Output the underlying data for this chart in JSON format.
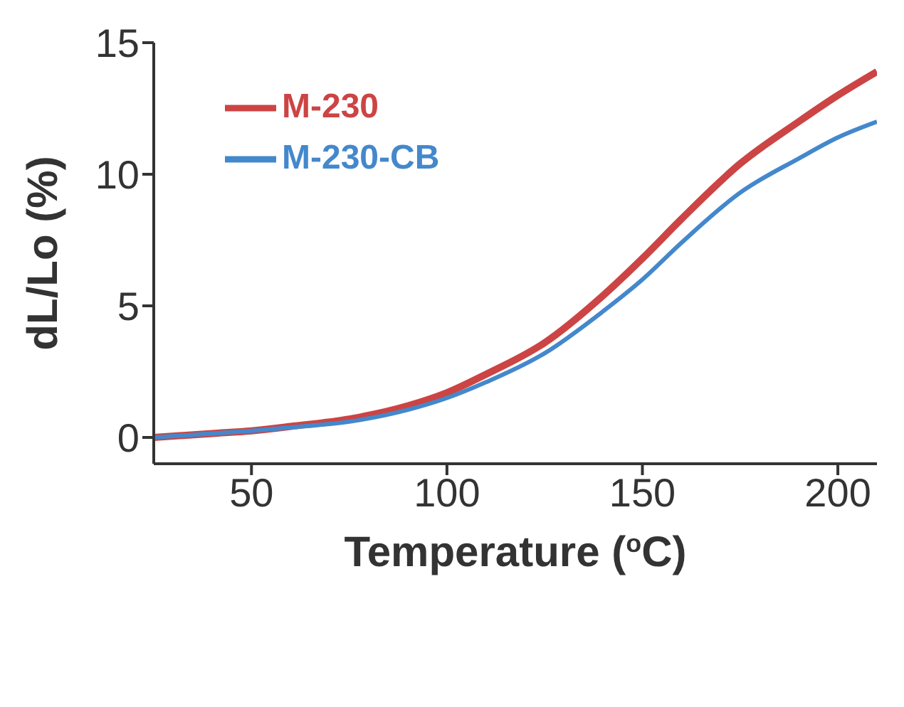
{
  "chart_data": {
    "type": "line",
    "xlabel": "Temperature ($^{o}$C)",
    "ylabel": "dL/Lo (%)",
    "x": [
      25,
      40,
      50,
      60,
      75,
      90,
      100,
      110,
      125,
      140,
      150,
      160,
      175,
      190,
      200,
      210
    ],
    "series": [
      {
        "name": "M-230",
        "color": "#cc4444",
        "values": [
          0,
          0.15,
          0.25,
          0.42,
          0.7,
          1.2,
          1.7,
          2.4,
          3.6,
          5.4,
          6.8,
          8.3,
          10.4,
          12.0,
          13.0,
          13.9
        ]
      },
      {
        "name": "M-230-CB",
        "color": "#4488cc",
        "values": [
          0,
          0.15,
          0.25,
          0.38,
          0.6,
          1.05,
          1.5,
          2.1,
          3.2,
          4.8,
          6.0,
          7.4,
          9.3,
          10.6,
          11.4,
          12.0
        ]
      }
    ],
    "xlim": [
      25,
      210
    ],
    "xticks": [
      50,
      100,
      150,
      200
    ],
    "ylim": [
      -1,
      15
    ],
    "yticks": [
      0,
      5,
      10,
      15
    ],
    "grid": false,
    "legend": "top left",
    "marker": "none",
    "line_style": "solid"
  }
}
